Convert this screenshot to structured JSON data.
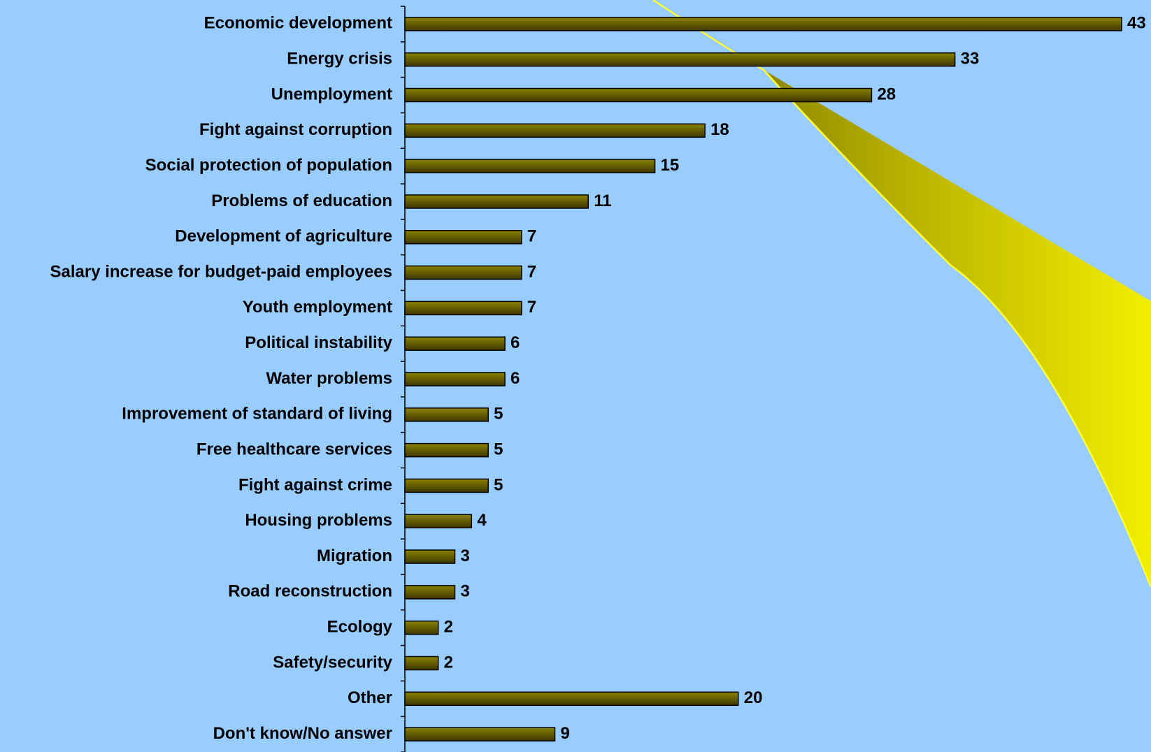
{
  "chart_data": {
    "type": "bar",
    "orientation": "horizontal",
    "categories": [
      "Economic development",
      "Energy crisis",
      "Unemployment",
      "Fight against corruption",
      "Social protection of population",
      "Problems of education",
      "Development of agriculture",
      "Salary increase for budget-paid employees",
      "Youth employment",
      "Political instability",
      "Water problems",
      "Improvement of standard of living",
      "Free healthcare services",
      "Fight against crime",
      "Housing problems",
      "Migration",
      "Road reconstruction",
      "Ecology",
      "Safety/security",
      "Other",
      "Don't know/No answer"
    ],
    "values": [
      43,
      33,
      28,
      18,
      15,
      11,
      7,
      7,
      7,
      6,
      6,
      5,
      5,
      5,
      4,
      3,
      3,
      2,
      2,
      20,
      9
    ],
    "color": "#6b6400",
    "xlim": [
      0,
      43
    ]
  }
}
